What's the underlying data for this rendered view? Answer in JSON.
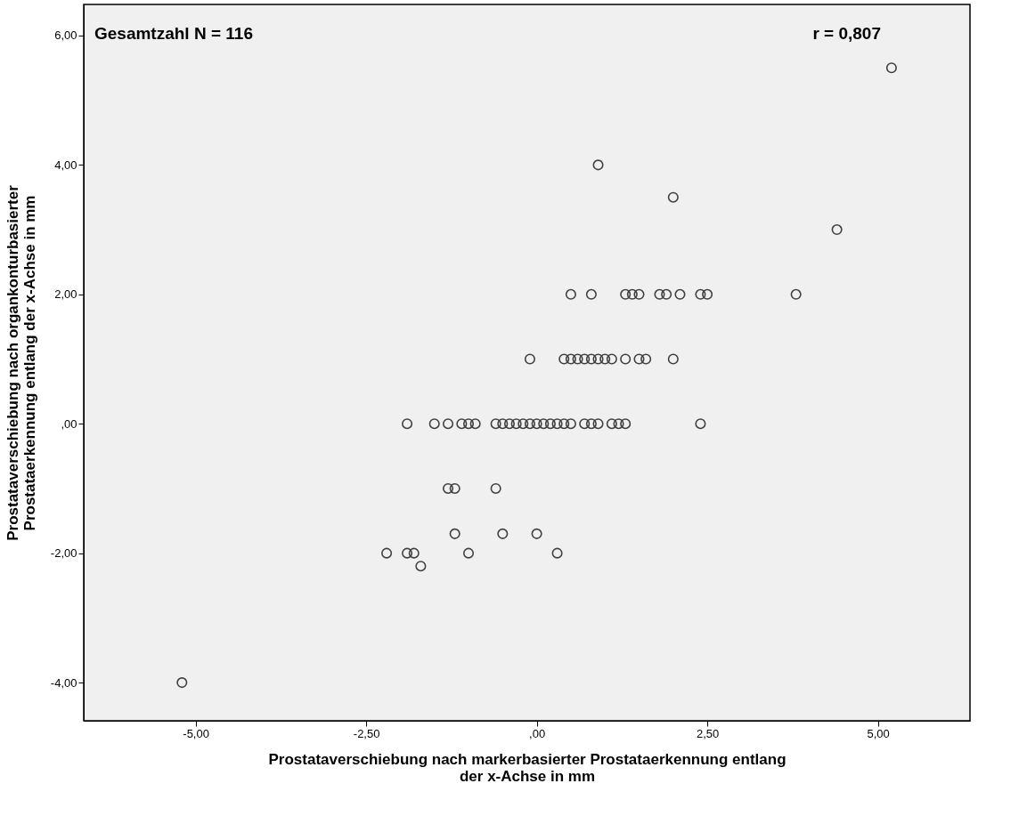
{
  "chart_data": {
    "type": "scatter",
    "xlabel": "Prostataverschiebung nach markerbasierter Prostataerkennung entlang der x-Achse in mm",
    "ylabel": "Prostataverschiebung nach organkonturbasierter Prostataerkennung entlang der x-Achse in mm",
    "annotations": [
      "Gesamtzahl N = 116",
      "r = 0,807"
    ],
    "series": [
      {
        "color": "#404040",
        "x": [
          5.2,
          0.9,
          2.0,
          4.4,
          0.5,
          0.8,
          1.3,
          1.4,
          1.5,
          1.8,
          1.9,
          2.1,
          2.4,
          2.5,
          3.8,
          -0.1,
          0.4,
          0.5,
          0.6,
          0.7,
          0.8,
          0.9,
          1.0,
          1.1,
          1.3,
          1.5,
          1.6,
          2.0,
          -1.9,
          -1.5,
          -1.3,
          -1.1,
          -1.0,
          -0.9,
          -0.6,
          -0.5,
          -0.4,
          -0.3,
          -0.2,
          -0.1,
          0.0,
          0.1,
          0.2,
          0.3,
          0.4,
          0.5,
          0.7,
          0.8,
          0.9,
          1.1,
          1.2,
          1.3,
          2.4,
          -1.3,
          -1.2,
          -0.6,
          -1.2,
          -0.5,
          0.0,
          -2.2,
          -1.9,
          -1.8,
          -1.0,
          0.3,
          -1.7,
          -5.2
        ],
        "values": [
          5.5,
          4.0,
          3.5,
          3.0,
          2,
          2,
          2,
          2,
          2,
          2,
          2,
          2,
          2,
          2,
          2,
          1,
          1,
          1,
          1,
          1,
          1,
          1,
          1,
          1,
          1,
          1,
          1,
          1,
          0,
          0,
          0,
          0,
          0,
          0,
          0,
          0,
          0,
          0,
          0,
          0,
          0,
          0,
          0,
          0,
          0,
          0,
          0,
          0,
          0,
          0,
          0,
          0,
          0,
          -1,
          -1,
          -1,
          -1.7,
          -1.7,
          -1.7,
          -2,
          -2,
          -2,
          -2,
          -2,
          -2.2,
          -4
        ]
      }
    ],
    "xlim": [
      -6.64,
      6.35
    ],
    "ylim": [
      -4.59,
      6.48
    ],
    "xticks": [
      {
        "value": -5,
        "label": "-5,00"
      },
      {
        "value": -2.5,
        "label": "-2,50"
      },
      {
        "value": 0,
        "label": ",00"
      },
      {
        "value": 2.5,
        "label": "2,50"
      },
      {
        "value": 5,
        "label": "5,00"
      }
    ],
    "yticks": [
      {
        "value": -4,
        "label": "-4,00"
      },
      {
        "value": -2,
        "label": "-2,00"
      },
      {
        "value": 0,
        "label": ",00"
      },
      {
        "value": 2,
        "label": "2,00"
      },
      {
        "value": 4,
        "label": "4,00"
      },
      {
        "value": 6,
        "label": "6,00"
      }
    ],
    "marker": "circle",
    "grid": false
  }
}
